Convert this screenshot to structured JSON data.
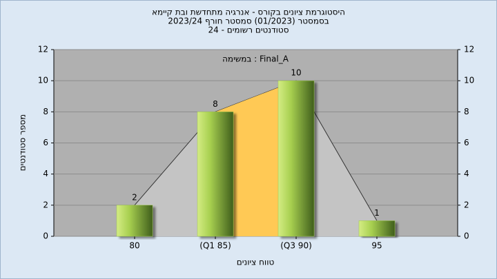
{
  "chart_data": {
    "type": "bar",
    "title": "היסטוגרמת ציונים בקורס - אנרגיה מתחדשת ובת קיימא",
    "subtitle": "בסמסטר  (01/2023)  סמסטר חורף 2023/24",
    "subtitle2": "סטודנטים רשומים - 24",
    "annotation": "Final_A : במשימה",
    "x_label": "טווח ציונים",
    "y_label": "מספר סטודנטים",
    "categories": [
      "80",
      "(Q1 85)",
      "(Q3 90)",
      "95"
    ],
    "values": [
      2,
      8,
      10,
      1
    ],
    "value_labels": [
      "2",
      "8",
      "10",
      "1"
    ],
    "color": "#9cc84a",
    "area_color": "#c4c4c4",
    "highlight_color": "#ffc955",
    "plot_background": "#b0b0b0",
    "ylim": [
      0,
      12
    ],
    "yticks": [
      0,
      2,
      4,
      6,
      8,
      10,
      12
    ],
    "y2lim": [
      0,
      12
    ],
    "y2ticks": [
      0,
      2,
      4,
      6,
      8,
      10,
      12
    ],
    "grid": true
  }
}
